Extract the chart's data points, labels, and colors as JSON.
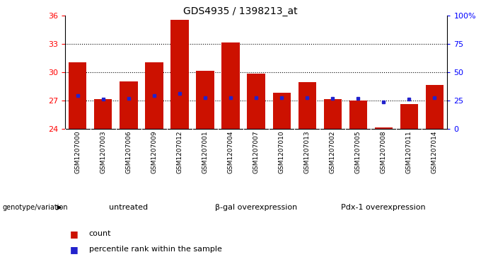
{
  "title": "GDS4935 / 1398213_at",
  "samples": [
    "GSM1207000",
    "GSM1207003",
    "GSM1207006",
    "GSM1207009",
    "GSM1207012",
    "GSM1207001",
    "GSM1207004",
    "GSM1207007",
    "GSM1207010",
    "GSM1207013",
    "GSM1207002",
    "GSM1207005",
    "GSM1207008",
    "GSM1207011",
    "GSM1207014"
  ],
  "counts": [
    31.0,
    27.1,
    29.0,
    31.0,
    35.5,
    30.1,
    33.1,
    29.8,
    27.8,
    28.9,
    27.1,
    27.0,
    24.1,
    26.6,
    28.6
  ],
  "percentile_values": [
    27.5,
    27.1,
    27.2,
    27.5,
    27.7,
    27.3,
    27.3,
    27.3,
    27.3,
    27.3,
    27.2,
    27.2,
    26.8,
    27.1,
    27.3
  ],
  "groups": [
    {
      "label": "untreated",
      "indices": [
        0,
        1,
        2,
        3,
        4
      ]
    },
    {
      "label": "β-gal overexpression",
      "indices": [
        5,
        6,
        7,
        8,
        9
      ]
    },
    {
      "label": "Pdx-1 overexpression",
      "indices": [
        10,
        11,
        12,
        13,
        14
      ]
    }
  ],
  "ymin": 24,
  "ymax": 36,
  "yticks": [
    24,
    27,
    30,
    33,
    36
  ],
  "bar_color": "#cc1100",
  "dot_color": "#2222cc",
  "bg_color": "#cccccc",
  "group_bg": "#88dd88"
}
